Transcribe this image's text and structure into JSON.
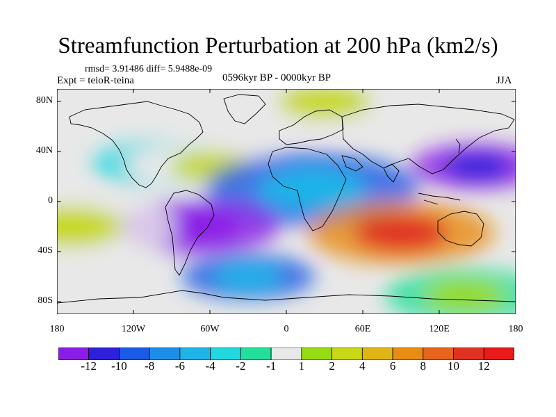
{
  "title": "Streamfunction Perturbation at 200 hPa (km2/s)",
  "stats": "rmsd= 3.91486 diff= 5.9488e-09",
  "experiment": "Expt = teioR-teina",
  "period": "0596kyr BP - 0000kyr BP",
  "season": "JJA",
  "map": {
    "variable": "streamfunction perturbation",
    "level_hpa": 200,
    "units": "km2/s",
    "lon_range": [
      -180,
      180
    ],
    "lat_range": [
      -90,
      90
    ],
    "features": [
      {
        "name": "north-america-positive",
        "lon": -100,
        "lat": 30,
        "level_index": 7
      },
      {
        "name": "north-atlantic-positive",
        "lon": -60,
        "lat": 28,
        "level_index": 9
      },
      {
        "name": "arctic-europe-positive",
        "lon": 30,
        "lat": 80,
        "level_index": 9
      },
      {
        "name": "sahara-negative",
        "lon": 20,
        "lat": 10,
        "level_index": 4
      },
      {
        "name": "east-asia-negative",
        "lon": 150,
        "lat": 28,
        "level_index": 1
      },
      {
        "name": "south-america-negative",
        "lon": -68,
        "lat": -20,
        "level_index": 0
      },
      {
        "name": "indian-ocean-positive",
        "lon": 90,
        "lat": -25,
        "level_index": 13
      },
      {
        "name": "south-pacific-positive",
        "lon": -170,
        "lat": -20,
        "level_index": 9
      },
      {
        "name": "southern-ocean-negative",
        "lon": -30,
        "lat": -60,
        "level_index": 4
      },
      {
        "name": "antarctic-positive",
        "lon": 140,
        "lat": -75,
        "level_index": 8
      }
    ]
  },
  "axes": {
    "y_ticks": [
      {
        "label": "80N",
        "value": 80
      },
      {
        "label": "40N",
        "value": 40
      },
      {
        "label": "0",
        "value": 0
      },
      {
        "label": "40S",
        "value": -40
      },
      {
        "label": "80S",
        "value": -80
      }
    ],
    "x_ticks": [
      {
        "label": "180",
        "value": -180
      },
      {
        "label": "120W",
        "value": -120
      },
      {
        "label": "60W",
        "value": -60
      },
      {
        "label": "0",
        "value": 0
      },
      {
        "label": "60E",
        "value": 60
      },
      {
        "label": "120E",
        "value": 120
      },
      {
        "label": "180",
        "value": 180
      }
    ]
  },
  "colorbar": {
    "colors": [
      "#8a1ee8",
      "#2f20dc",
      "#1a5be6",
      "#1c8ee8",
      "#1fb4e8",
      "#22d8e0",
      "#22e09a",
      "#e8e8e8",
      "#96dc14",
      "#c8d814",
      "#e0b414",
      "#e88c14",
      "#e6641c",
      "#e03220",
      "#e81a1a"
    ],
    "labels": [
      "-12",
      "-10",
      "-8",
      "-6",
      "-4",
      "-2",
      "-1",
      "1",
      "2",
      "4",
      "6",
      "8",
      "10",
      "12"
    ]
  }
}
